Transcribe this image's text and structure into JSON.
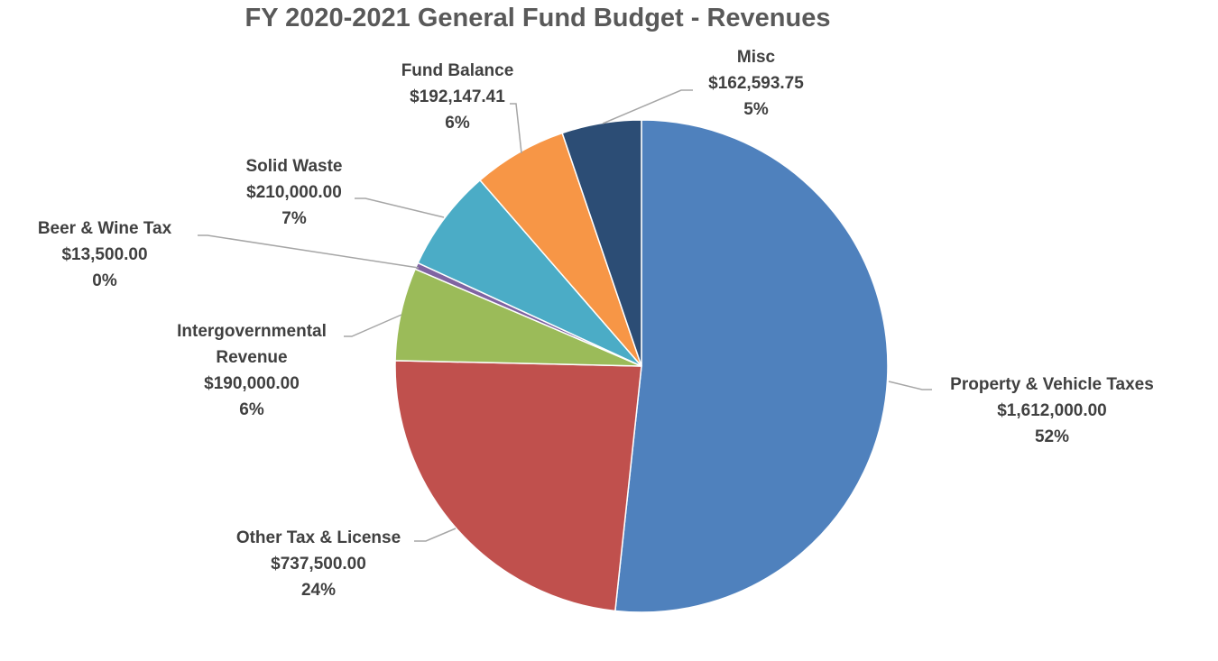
{
  "chart_data": {
    "type": "pie",
    "title": "FY 2020-2021 General Fund Budget - Revenues",
    "slices": [
      {
        "label": "Property & Vehicle Taxes",
        "value": 1612000.0,
        "value_text": "$1,612,000.00",
        "percent_text": "52%",
        "color": "#4F81BD"
      },
      {
        "label": "Other Tax & License",
        "value": 737500.0,
        "value_text": "$737,500.00",
        "percent_text": "24%",
        "color": "#C0504D"
      },
      {
        "label": "Intergovernmental Revenue",
        "value": 190000.0,
        "value_text": "$190,000.00",
        "percent_text": "6%",
        "color": "#9BBB59"
      },
      {
        "label": "Beer & Wine Tax",
        "value": 13500.0,
        "value_text": "$13,500.00",
        "percent_text": "0%",
        "color": "#8064A2"
      },
      {
        "label": "Solid Waste",
        "value": 210000.0,
        "value_text": "$210,000.00",
        "percent_text": "7%",
        "color": "#4BACC6"
      },
      {
        "label": "Fund Balance",
        "value": 192147.41,
        "value_text": "$192,147.41",
        "percent_text": "6%",
        "color": "#F79646"
      },
      {
        "label": "Misc",
        "value": 162593.75,
        "value_text": "$162,593.75",
        "percent_text": "5%",
        "color": "#2C4D75"
      }
    ]
  }
}
